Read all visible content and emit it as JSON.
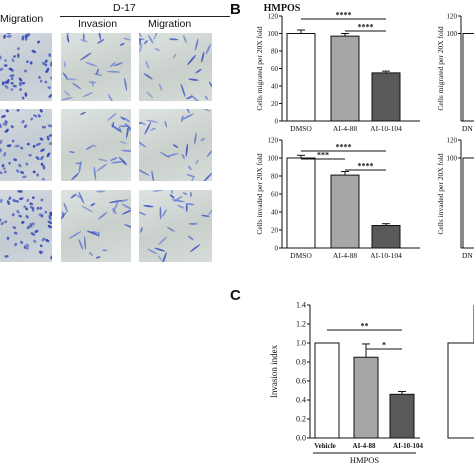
{
  "panel_a": {
    "col_headers": {
      "left": "Migration",
      "d17": "D-17",
      "invasion": "Invasion",
      "migration": "Migration"
    }
  },
  "panel_b": {
    "letter": "B"
  },
  "panel_c": {
    "letter": "C"
  },
  "chart_data": [
    {
      "type": "bar",
      "title": "HMPOS",
      "categories": [
        "DMSO",
        "AI-4-88",
        "AI-10-104"
      ],
      "values": [
        100,
        97,
        55
      ],
      "errors": [
        4,
        3,
        2
      ],
      "ylabel": "Cells migrated per 20X fold",
      "ylim": [
        0,
        120
      ],
      "yticks": [
        "0",
        "20",
        "40",
        "60",
        "80",
        "100",
        "120"
      ],
      "colors": [
        "#ffffff",
        "#a6a6a6",
        "#595959"
      ],
      "significance": [
        {
          "from": 0,
          "to": 2,
          "label": "****"
        },
        {
          "from": 1,
          "to": 2,
          "label": "****"
        }
      ]
    },
    {
      "type": "bar",
      "categories": [
        "DMSO",
        "AI-4-88",
        "AI-10-104"
      ],
      "values": [
        100,
        81,
        25
      ],
      "errors": [
        3,
        4,
        2
      ],
      "ylabel": "Cells invaded per 20X fold",
      "ylim": [
        0,
        120
      ],
      "yticks": [
        "0",
        "20",
        "40",
        "60",
        "80",
        "100",
        "120"
      ],
      "colors": [
        "#ffffff",
        "#a6a6a6",
        "#595959"
      ],
      "significance": [
        {
          "from": 0,
          "to": 1,
          "label": "***"
        },
        {
          "from": 0,
          "to": 2,
          "label": "****"
        },
        {
          "from": 1,
          "to": 2,
          "label": "****"
        }
      ]
    },
    {
      "type": "bar",
      "categories": [
        "Vehicle",
        "AI-4-88",
        "AI-10-104"
      ],
      "group_label": "HMPOS",
      "values": [
        1.0,
        0.85,
        0.46
      ],
      "errors": [
        0,
        0.14,
        0.03
      ],
      "ylabel": "Invasion index",
      "ylim": [
        0,
        1.4
      ],
      "yticks": [
        "0.0",
        "0.2",
        "0.4",
        "0.6",
        "0.8",
        "1.0",
        "1.2",
        "1.4"
      ],
      "colors": [
        "#ffffff",
        "#a6a6a6",
        "#595959"
      ],
      "significance": [
        {
          "from": 0,
          "to": 2,
          "label": "**"
        },
        {
          "from": 1,
          "to": 2,
          "label": "*"
        }
      ]
    },
    {
      "type": "bar",
      "partial": true,
      "values": [
        100
      ],
      "ylabel": "Cells migrated per 20X fold",
      "yticks": [
        "120",
        "100"
      ],
      "ylim": [
        0,
        120
      ],
      "colors": [
        "#ffffff"
      ]
    },
    {
      "type": "bar",
      "partial": true,
      "values": [
        100
      ],
      "ylabel": "Cells invaded per 20X fold",
      "yticks": [
        "120",
        "100"
      ],
      "ylim": [
        0,
        120
      ],
      "colors": [
        "#ffffff"
      ]
    },
    {
      "type": "bar",
      "partial": true,
      "values": [
        1.0
      ],
      "ylim": [
        0,
        1.4
      ],
      "colors": [
        "#ffffff"
      ]
    }
  ],
  "cut_labels": {
    "dmso_right": "DN"
  }
}
